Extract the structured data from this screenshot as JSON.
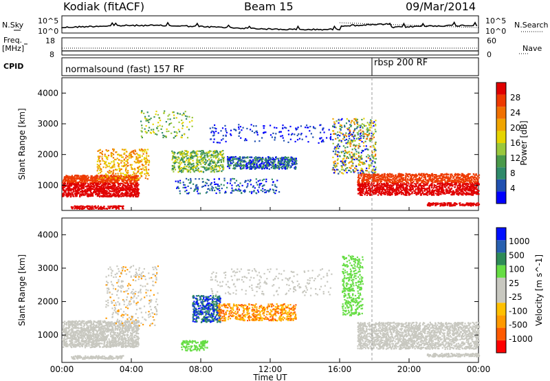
{
  "header": {
    "station": "Kodiak (fitACF)",
    "beam": "Beam 15",
    "date": "09/Mar/2014"
  },
  "strip_labels": {
    "nsky": "N.Sky",
    "nsky_top": "10^5",
    "nsky_bottom": "10^0",
    "nsearch": "N.Search",
    "nsearch_top": "10^5",
    "nsearch_bottom": "10^0",
    "freq": "Freq.",
    "freq_unit": "[MHz]",
    "freq_top": "18",
    "freq_bottom": "8",
    "nave": "Nave",
    "nave_top": "60",
    "nave_bottom": "0",
    "cpid": "CPID",
    "mode1": "normalsound (fast) 157 RF",
    "mode2": "rbsp 200 RF"
  },
  "colors": {
    "power_scale": [
      "#0000ff",
      "#2050b0",
      "#2f8a6a",
      "#4a9a4a",
      "#9ac83c",
      "#e6d400",
      "#f0a500",
      "#f07000",
      "#ee3a00",
      "#e00000"
    ],
    "velocity_scale": [
      "#ff0000",
      "#ff5a00",
      "#ff9a00",
      "#ffc000",
      "#c8c8c0",
      "#c8c8c0",
      "#66dd44",
      "#2e8b57",
      "#2860b0",
      "#0010ff"
    ]
  },
  "chart_data": [
    {
      "type": "heatmap",
      "title": "Power",
      "ylabel": "Slant Range [km]",
      "xlabel": "Time UT",
      "x_ticks": [
        "00:00",
        "04:00",
        "08:00",
        "12:00",
        "16:00",
        "20:00",
        "00:00"
      ],
      "y_ticks": [
        "1000",
        "2000",
        "3000",
        "4000"
      ],
      "xlim": [
        0,
        24
      ],
      "ylim": [
        180,
        4500
      ],
      "colorbar_label": "Power [dB]",
      "colorbar_ticks": [
        "4",
        "8",
        "12",
        "16",
        "20",
        "24",
        "28"
      ]
    },
    {
      "type": "heatmap",
      "title": "Velocity",
      "ylabel": "Slant Range [km]",
      "xlabel": "Time UT",
      "x_ticks": [
        "00:00",
        "04:00",
        "08:00",
        "12:00",
        "16:00",
        "20:00",
        "00:00"
      ],
      "y_ticks": [
        "1000",
        "2000",
        "3000",
        "4000"
      ],
      "xlim": [
        0,
        24
      ],
      "ylim": [
        180,
        4500
      ],
      "colorbar_label": "Velocity [m s^-1]",
      "colorbar_ticks": [
        "-1000",
        "-500",
        "-100",
        "-25",
        "25",
        "100",
        "500",
        "1000"
      ]
    }
  ],
  "axis": {
    "time_label": "Time UT"
  }
}
